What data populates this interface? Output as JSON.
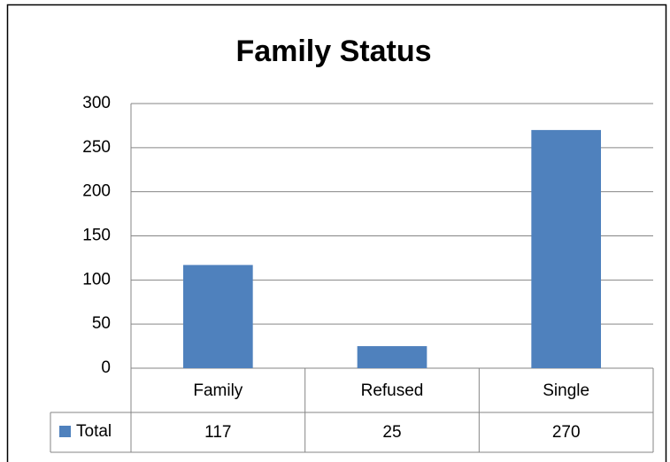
{
  "chart_data": {
    "type": "bar",
    "title": "Family Status",
    "categories": [
      "Family",
      "Refused",
      "Single"
    ],
    "series": [
      {
        "name": "Total",
        "color": "#4f81bd",
        "values": [
          117,
          25,
          270
        ]
      }
    ],
    "ylim": [
      0,
      300
    ],
    "yticks": [
      0,
      50,
      100,
      150,
      200,
      250,
      300
    ],
    "grid": true
  }
}
